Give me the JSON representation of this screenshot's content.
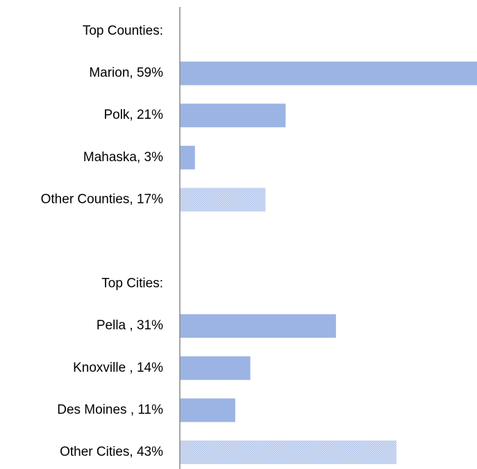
{
  "chart_data": {
    "type": "bar",
    "orientation": "horizontal",
    "categories": [
      "Top Counties:",
      "Marion, 59%",
      "Polk, 21%",
      "Mahaska, 3%",
      "Other Counties, 17%",
      null,
      "Top Cities:",
      "Pella , 31%",
      "Knoxville , 14%",
      "Des Moines , 11%",
      "Other Cities, 43%"
    ],
    "values": [
      null,
      59,
      21,
      3,
      17,
      null,
      null,
      31,
      14,
      11,
      43
    ],
    "hatched": [
      false,
      false,
      false,
      false,
      true,
      false,
      false,
      false,
      false,
      false,
      true
    ],
    "color": "#9cb4e3",
    "xlim": [
      0,
      59
    ]
  }
}
